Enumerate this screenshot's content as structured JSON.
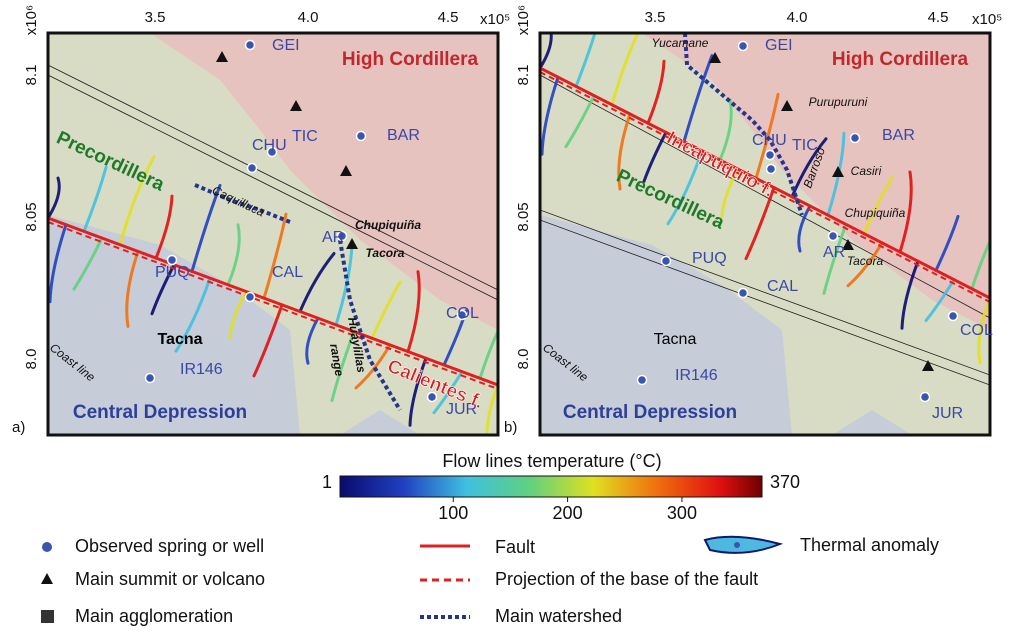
{
  "panels": [
    {
      "tag": "a)",
      "x_ticks": [
        "3.5",
        "4.0",
        "4.5"
      ],
      "x_exponent": "x10⁵",
      "y_ticks": [
        "8.1",
        "8.05",
        "8.0"
      ],
      "y_exponent": "x10⁶",
      "stations": [
        "GEI",
        "TIC",
        "CHU",
        "BAR",
        "AR",
        "PUQ",
        "CAL",
        "IR146",
        "COL",
        "JUR"
      ],
      "regions": [
        "High Cordillera",
        "Precordillera",
        "Central Depression"
      ],
      "features": [
        "Caquilluca",
        "Chupiquiña",
        "Tacora",
        "Tacna",
        "Coast line",
        "Huaylillas",
        "range"
      ],
      "faults": [
        "Calientes f."
      ]
    },
    {
      "tag": "b)",
      "x_ticks": [
        "3.5",
        "4.0",
        "4.5"
      ],
      "x_exponent": "x10⁵",
      "y_ticks": [
        "8.1",
        "8.05",
        "8.0"
      ],
      "y_exponent": "x10⁶",
      "stations": [
        "GEI",
        "CHU",
        "TIC",
        "BAR",
        "AR",
        "PUQ",
        "CAL",
        "COL",
        "IR146",
        "JUR"
      ],
      "regions": [
        "High Cordillera",
        "Precordillera",
        "Central Depression"
      ],
      "features": [
        "Yucamane",
        "Purupuruni",
        "Barroso",
        "Casiri",
        "Chupiquiña",
        "Tacora",
        "Tacna",
        "Coast line"
      ],
      "faults": [
        "Incapuquio f."
      ]
    }
  ],
  "colorbar": {
    "title": "Flow lines temperature (°C)",
    "min": 1,
    "max": 370,
    "ticks": [
      100,
      200,
      300
    ]
  },
  "legend": {
    "spring": "Observed spring or well",
    "summit": "Main summit or volcano",
    "agglomeration": "Main agglomeration",
    "fault": "Fault",
    "projection": "Projection of the base of the fault",
    "watershed": "Main watershed",
    "anomaly": "Thermal anomaly"
  }
}
